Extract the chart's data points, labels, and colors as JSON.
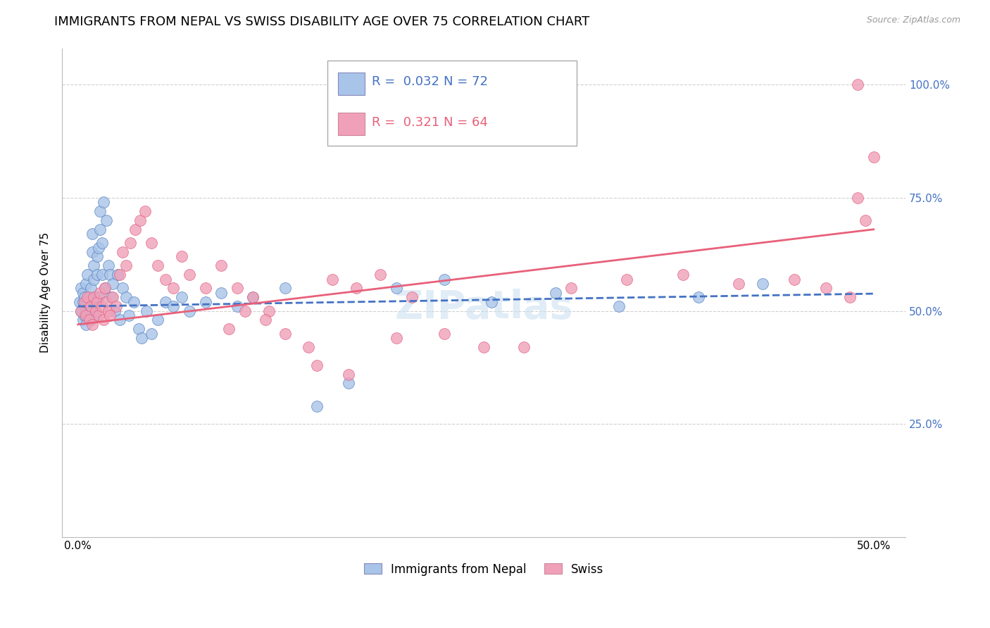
{
  "title": "IMMIGRANTS FROM NEPAL VS SWISS DISABILITY AGE OVER 75 CORRELATION CHART",
  "source": "Source: ZipAtlas.com",
  "ylabel": "Disability Age Over 75",
  "yticks": [
    0.0,
    0.25,
    0.5,
    0.75,
    1.0
  ],
  "ytick_labels": [
    "",
    "25.0%",
    "50.0%",
    "75.0%",
    "100.0%"
  ],
  "xticks": [
    0.0,
    0.5
  ],
  "xtick_labels": [
    "0.0%",
    "50.0%"
  ],
  "xlim": [
    -0.01,
    0.52
  ],
  "ylim": [
    0.0,
    1.08
  ],
  "legend_nepal_R": "0.032",
  "legend_nepal_N": "72",
  "legend_swiss_R": "0.321",
  "legend_swiss_N": "64",
  "nepal_x": [
    0.001,
    0.002,
    0.002,
    0.003,
    0.003,
    0.003,
    0.004,
    0.004,
    0.004,
    0.005,
    0.005,
    0.005,
    0.006,
    0.006,
    0.006,
    0.007,
    0.007,
    0.008,
    0.008,
    0.008,
    0.009,
    0.009,
    0.01,
    0.01,
    0.01,
    0.011,
    0.011,
    0.012,
    0.012,
    0.013,
    0.013,
    0.014,
    0.014,
    0.015,
    0.015,
    0.016,
    0.017,
    0.018,
    0.019,
    0.02,
    0.021,
    0.022,
    0.023,
    0.025,
    0.026,
    0.028,
    0.03,
    0.032,
    0.035,
    0.038,
    0.04,
    0.043,
    0.046,
    0.05,
    0.055,
    0.06,
    0.065,
    0.07,
    0.08,
    0.09,
    0.1,
    0.11,
    0.13,
    0.15,
    0.17,
    0.2,
    0.23,
    0.26,
    0.3,
    0.34,
    0.39,
    0.43
  ],
  "nepal_y": [
    0.52,
    0.5,
    0.55,
    0.48,
    0.52,
    0.54,
    0.49,
    0.53,
    0.51,
    0.5,
    0.47,
    0.56,
    0.52,
    0.49,
    0.58,
    0.51,
    0.53,
    0.48,
    0.55,
    0.5,
    0.63,
    0.67,
    0.52,
    0.57,
    0.6,
    0.53,
    0.49,
    0.62,
    0.58,
    0.53,
    0.64,
    0.68,
    0.72,
    0.65,
    0.58,
    0.74,
    0.55,
    0.7,
    0.6,
    0.58,
    0.53,
    0.56,
    0.5,
    0.58,
    0.48,
    0.55,
    0.53,
    0.49,
    0.52,
    0.46,
    0.44,
    0.5,
    0.45,
    0.48,
    0.52,
    0.51,
    0.53,
    0.5,
    0.52,
    0.54,
    0.51,
    0.53,
    0.55,
    0.29,
    0.34,
    0.55,
    0.57,
    0.52,
    0.54,
    0.51,
    0.53,
    0.56
  ],
  "swiss_x": [
    0.002,
    0.004,
    0.005,
    0.006,
    0.007,
    0.008,
    0.009,
    0.01,
    0.011,
    0.012,
    0.013,
    0.014,
    0.015,
    0.016,
    0.017,
    0.018,
    0.019,
    0.02,
    0.022,
    0.024,
    0.026,
    0.028,
    0.03,
    0.033,
    0.036,
    0.039,
    0.042,
    0.046,
    0.05,
    0.055,
    0.06,
    0.065,
    0.07,
    0.08,
    0.09,
    0.1,
    0.11,
    0.12,
    0.13,
    0.145,
    0.16,
    0.175,
    0.19,
    0.21,
    0.23,
    0.255,
    0.28,
    0.31,
    0.345,
    0.38,
    0.415,
    0.45,
    0.47,
    0.485,
    0.49,
    0.495,
    0.5,
    0.15,
    0.17,
    0.2,
    0.095,
    0.105,
    0.118,
    0.49
  ],
  "swiss_y": [
    0.5,
    0.52,
    0.49,
    0.53,
    0.48,
    0.51,
    0.47,
    0.53,
    0.5,
    0.52,
    0.49,
    0.54,
    0.51,
    0.48,
    0.55,
    0.52,
    0.5,
    0.49,
    0.53,
    0.51,
    0.58,
    0.63,
    0.6,
    0.65,
    0.68,
    0.7,
    0.72,
    0.65,
    0.6,
    0.57,
    0.55,
    0.62,
    0.58,
    0.55,
    0.6,
    0.55,
    0.53,
    0.5,
    0.45,
    0.42,
    0.57,
    0.55,
    0.58,
    0.53,
    0.45,
    0.42,
    0.42,
    0.55,
    0.57,
    0.58,
    0.56,
    0.57,
    0.55,
    0.53,
    0.75,
    0.7,
    0.84,
    0.38,
    0.36,
    0.44,
    0.46,
    0.5,
    0.48,
    1.0
  ],
  "nepal_line_color": "#4472c4",
  "nepal_line_style": "--",
  "swiss_line_color": "#e8607a",
  "swiss_line_style": "-",
  "dot_color_nepal": "#a8c4e8",
  "dot_color_swiss": "#f0a0b8",
  "dot_edge_nepal": "#5580c0",
  "dot_edge_swiss": "#e06080",
  "background_color": "#ffffff",
  "grid_color": "#d0d0d0",
  "watermark": "ZIPatlas",
  "title_fontsize": 13,
  "axis_label_fontsize": 11,
  "tick_fontsize": 11,
  "legend_color_nepal": "#a8c4e8",
  "legend_color_swiss": "#f0a0b8",
  "legend_text_color_nepal": "#4472c4",
  "legend_text_color_swiss": "#e8607a"
}
